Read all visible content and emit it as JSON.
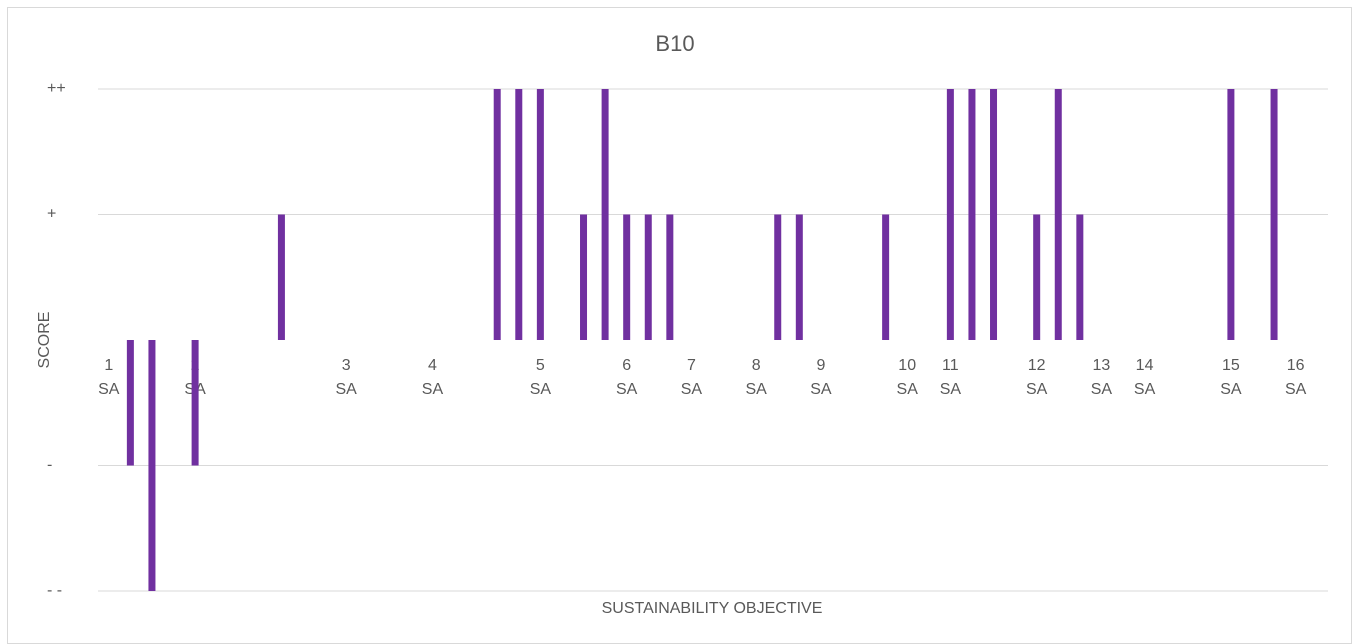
{
  "chart_data": {
    "type": "bar",
    "title": "B10",
    "x_label": "SUSTAINABILITY OBJECTIVE",
    "y_label": "SCORE",
    "categories": [
      "1\nSA",
      null,
      null,
      null,
      "2\nSA",
      null,
      null,
      null,
      null,
      null,
      null,
      "3\nSA",
      null,
      null,
      null,
      "4\nSA",
      null,
      null,
      null,
      null,
      "5\nSA",
      null,
      null,
      null,
      "6\nSA",
      null,
      null,
      "7\nSA",
      null,
      null,
      "8\nSA",
      null,
      null,
      "9\nSA",
      null,
      null,
      null,
      "10\nSA",
      null,
      "11\nSA",
      null,
      null,
      null,
      "12\nSA",
      null,
      null,
      "13\nSA",
      null,
      "14\nSA",
      null,
      null,
      null,
      "15\nSA",
      null,
      null,
      "16\nSA",
      null
    ],
    "values": [
      0,
      -1,
      -2,
      0,
      -1,
      0,
      0,
      0,
      1,
      0,
      0,
      0,
      0,
      0,
      0,
      0,
      0,
      0,
      2,
      2,
      2,
      0,
      1,
      2,
      1,
      1,
      1,
      0,
      0,
      0,
      0,
      1,
      1,
      0,
      0,
      0,
      1,
      0,
      0,
      2,
      2,
      2,
      0,
      1,
      2,
      1,
      0,
      0,
      0,
      0,
      0,
      0,
      2,
      0,
      2,
      0,
      0
    ],
    "color": "#7030a0",
    "ylim": [
      -2,
      2
    ],
    "yticks": [
      {
        "value": -2,
        "label": "- -"
      },
      {
        "value": -1,
        "label": "-"
      },
      {
        "value": 1,
        "label": "+"
      },
      {
        "value": 2,
        "label": "++"
      }
    ],
    "grid": true
  }
}
